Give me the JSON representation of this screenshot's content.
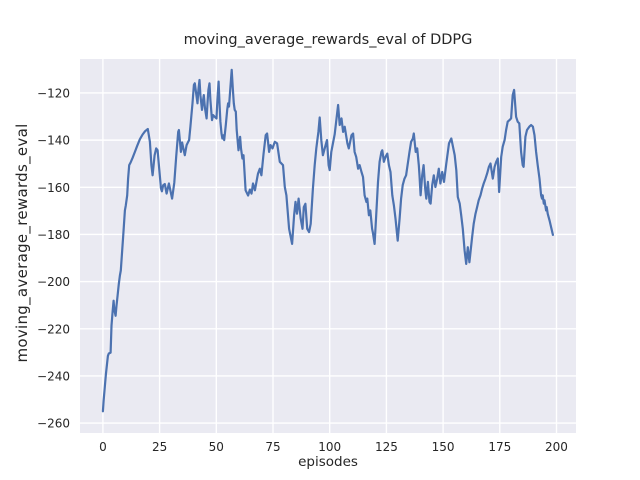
{
  "figure": {
    "title": "moving_average_rewards_eval of DDPG"
  },
  "chart_data": {
    "type": "line",
    "title": "moving_average_rewards_eval of DDPG",
    "xlabel": "episodes",
    "ylabel": "moving_average_rewards_eval",
    "legend": null,
    "grid": true,
    "xlim": [
      -10.1,
      208.6
    ],
    "ylim": [
      -264.2,
      -105.6
    ],
    "xticks": [
      0,
      25,
      50,
      75,
      100,
      125,
      150,
      175,
      200
    ],
    "yticks": [
      -120,
      -140,
      -160,
      -180,
      -200,
      -220,
      -240,
      -260
    ],
    "colors": {
      "line": "#4c72b0",
      "plot_background": "#eaeaf2",
      "grid": "#ffffff",
      "text": "#262626",
      "figure_background": "#ffffff"
    },
    "series": [
      {
        "name": "moving_average_rewards_eval",
        "points": [
          [
            0,
            -255
          ],
          [
            0.3,
            -250.6
          ],
          [
            0.9,
            -244.2
          ],
          [
            1.3,
            -239.3
          ],
          [
            1.8,
            -235
          ],
          [
            2.2,
            -231.5
          ],
          [
            2.6,
            -230.5
          ],
          [
            3.4,
            -230.1
          ],
          [
            3.8,
            -218.7
          ],
          [
            4.3,
            -212.3
          ],
          [
            4.7,
            -208.1
          ],
          [
            5,
            -211.6
          ],
          [
            5.6,
            -214.5
          ],
          [
            6,
            -210.2
          ],
          [
            6.5,
            -205.9
          ],
          [
            7,
            -201
          ],
          [
            7.5,
            -197.4
          ],
          [
            7.9,
            -195.3
          ],
          [
            9,
            -180
          ],
          [
            9.7,
            -169.8
          ],
          [
            10.1,
            -167.7
          ],
          [
            10.7,
            -163.4
          ],
          [
            11.1,
            -156.3
          ],
          [
            11.6,
            -150.6
          ],
          [
            12.2,
            -149.5
          ],
          [
            13.1,
            -147.5
          ],
          [
            14.1,
            -145
          ],
          [
            15.1,
            -142.4
          ],
          [
            16.3,
            -139.6
          ],
          [
            17.5,
            -137.6
          ],
          [
            18.6,
            -136.2
          ],
          [
            19.8,
            -135.3
          ],
          [
            20.7,
            -140.7
          ],
          [
            21.4,
            -150.6
          ],
          [
            21.9,
            -154.9
          ],
          [
            22.8,
            -146.4
          ],
          [
            23.5,
            -143.5
          ],
          [
            24.1,
            -144.3
          ],
          [
            24.8,
            -152.1
          ],
          [
            25.6,
            -160.6
          ],
          [
            26,
            -161.7
          ],
          [
            26.6,
            -159.1
          ],
          [
            27.3,
            -158.6
          ],
          [
            28.1,
            -162.7
          ],
          [
            29.1,
            -158.4
          ],
          [
            30.5,
            -164.8
          ],
          [
            31.5,
            -158
          ],
          [
            32.3,
            -147
          ],
          [
            33.2,
            -136.5
          ],
          [
            33.5,
            -135.7
          ],
          [
            34.4,
            -145
          ],
          [
            34.9,
            -141
          ],
          [
            36.1,
            -146.4
          ],
          [
            36.9,
            -142.1
          ],
          [
            37.6,
            -140.7
          ],
          [
            38,
            -140
          ],
          [
            38.6,
            -134.3
          ],
          [
            39.1,
            -128.6
          ],
          [
            39.5,
            -124.4
          ],
          [
            40.1,
            -116.6
          ],
          [
            40.5,
            -115.9
          ],
          [
            41,
            -119.4
          ],
          [
            41.7,
            -124.4
          ],
          [
            42.1,
            -118.7
          ],
          [
            42.6,
            -114.5
          ],
          [
            43,
            -120.9
          ],
          [
            43.7,
            -127.2
          ],
          [
            44.2,
            -123
          ],
          [
            44.5,
            -120.9
          ],
          [
            45,
            -126.5
          ],
          [
            45.7,
            -130.8
          ],
          [
            46.1,
            -124.4
          ],
          [
            46.5,
            -118.7
          ],
          [
            47,
            -115.9
          ],
          [
            47.4,
            -123
          ],
          [
            48.1,
            -131.5
          ],
          [
            48.6,
            -129.4
          ],
          [
            49.3,
            -130.1
          ],
          [
            50.1,
            -130.8
          ],
          [
            50.5,
            -123
          ],
          [
            51,
            -115.2
          ],
          [
            51.4,
            -124.4
          ],
          [
            51.8,
            -132.2
          ],
          [
            52.3,
            -137.2
          ],
          [
            52.7,
            -139.3
          ],
          [
            53.2,
            -137.9
          ],
          [
            53.5,
            -140
          ],
          [
            54.2,
            -133.6
          ],
          [
            54.8,
            -127.2
          ],
          [
            55.2,
            -124.4
          ],
          [
            55.6,
            -125.8
          ],
          [
            56.1,
            -119.4
          ],
          [
            56.8,
            -110.2
          ],
          [
            57.3,
            -118.7
          ],
          [
            57.7,
            -124.4
          ],
          [
            58.1,
            -127.2
          ],
          [
            58.6,
            -127.9
          ],
          [
            59,
            -135.7
          ],
          [
            59.8,
            -144.3
          ],
          [
            60.5,
            -138.6
          ],
          [
            60.9,
            -143.5
          ],
          [
            61.5,
            -147.8
          ],
          [
            62,
            -146.4
          ],
          [
            62.4,
            -152.7
          ],
          [
            62.9,
            -161.3
          ],
          [
            64,
            -163.5
          ],
          [
            64.8,
            -161
          ],
          [
            65.5,
            -162.7
          ],
          [
            66.2,
            -158.4
          ],
          [
            67,
            -161.3
          ],
          [
            68.4,
            -154.2
          ],
          [
            69.2,
            -152.1
          ],
          [
            69.9,
            -154.9
          ],
          [
            70.8,
            -146
          ],
          [
            71.8,
            -137.9
          ],
          [
            72.4,
            -137.2
          ],
          [
            73.3,
            -145
          ],
          [
            73.9,
            -142.1
          ],
          [
            74.8,
            -143.5
          ],
          [
            75.8,
            -140.7
          ],
          [
            76.8,
            -141.4
          ],
          [
            78,
            -149.2
          ],
          [
            79.4,
            -150.6
          ],
          [
            80.2,
            -159.9
          ],
          [
            80.9,
            -163.4
          ],
          [
            82.1,
            -177.6
          ],
          [
            83.4,
            -184
          ],
          [
            84.3,
            -171.9
          ],
          [
            84.9,
            -166.2
          ],
          [
            85.6,
            -171.2
          ],
          [
            86.3,
            -164.8
          ],
          [
            87.2,
            -173.3
          ],
          [
            88,
            -177.6
          ],
          [
            88.6,
            -168.4
          ],
          [
            89.3,
            -167
          ],
          [
            90.1,
            -177.6
          ],
          [
            90.9,
            -179
          ],
          [
            91.6,
            -175.5
          ],
          [
            92.6,
            -160.6
          ],
          [
            93.4,
            -150.6
          ],
          [
            94.1,
            -143.5
          ],
          [
            95,
            -136.5
          ],
          [
            95.6,
            -130.4
          ],
          [
            96.3,
            -140
          ],
          [
            97,
            -146.4
          ],
          [
            98.2,
            -142.1
          ],
          [
            98.8,
            -140
          ],
          [
            99.5,
            -150.6
          ],
          [
            100,
            -152.7
          ],
          [
            100.7,
            -145
          ],
          [
            101.5,
            -141
          ],
          [
            102.2,
            -137.5
          ],
          [
            103.7,
            -125.1
          ],
          [
            104.4,
            -133.6
          ],
          [
            105.2,
            -130.8
          ],
          [
            105.9,
            -136.5
          ],
          [
            106.6,
            -134.3
          ],
          [
            107.8,
            -141.4
          ],
          [
            108.4,
            -143.5
          ],
          [
            109.6,
            -137.9
          ],
          [
            110.3,
            -137.2
          ],
          [
            111,
            -145
          ],
          [
            111.7,
            -147.1
          ],
          [
            112.5,
            -152.1
          ],
          [
            113.2,
            -150.6
          ],
          [
            114,
            -153.5
          ],
          [
            114.7,
            -155.6
          ],
          [
            115.4,
            -163.4
          ],
          [
            116.2,
            -166.2
          ],
          [
            116.6,
            -164.8
          ],
          [
            117.3,
            -171.9
          ],
          [
            117.9,
            -169.8
          ],
          [
            118.7,
            -177.6
          ],
          [
            119,
            -179
          ],
          [
            119.8,
            -184
          ],
          [
            120.5,
            -171.9
          ],
          [
            121.3,
            -157.7
          ],
          [
            122,
            -149.2
          ],
          [
            122.8,
            -145
          ],
          [
            123.2,
            -144.3
          ],
          [
            123.9,
            -149.2
          ],
          [
            124.6,
            -147.1
          ],
          [
            125.4,
            -145.7
          ],
          [
            126.1,
            -150.6
          ],
          [
            126.8,
            -153.5
          ],
          [
            127.6,
            -163.4
          ],
          [
            128.3,
            -167.7
          ],
          [
            129,
            -173.3
          ],
          [
            130,
            -182.6
          ],
          [
            130.8,
            -173.3
          ],
          [
            131.5,
            -164.8
          ],
          [
            132.2,
            -159.1
          ],
          [
            133,
            -156.3
          ],
          [
            133.7,
            -154.9
          ],
          [
            135.2,
            -145
          ],
          [
            135.9,
            -140.7
          ],
          [
            136.7,
            -139.3
          ],
          [
            137.1,
            -137.2
          ],
          [
            137.9,
            -145
          ],
          [
            138.6,
            -143.5
          ],
          [
            139.3,
            -150.6
          ],
          [
            139.6,
            -155
          ],
          [
            140.1,
            -163.4
          ],
          [
            140.8,
            -154.9
          ],
          [
            141.4,
            -150.6
          ],
          [
            142.1,
            -160.6
          ],
          [
            142.6,
            -164.8
          ],
          [
            143.3,
            -157.7
          ],
          [
            144,
            -166.2
          ],
          [
            144.5,
            -166.9
          ],
          [
            145.2,
            -159.1
          ],
          [
            145.9,
            -154.9
          ],
          [
            146.6,
            -159.9
          ],
          [
            147.4,
            -156.3
          ],
          [
            148.1,
            -152.1
          ],
          [
            148.8,
            -158.4
          ],
          [
            149.6,
            -153.5
          ],
          [
            150.4,
            -157.7
          ],
          [
            151.4,
            -149.9
          ],
          [
            152.6,
            -141.4
          ],
          [
            153.6,
            -139.3
          ],
          [
            155.1,
            -146.4
          ],
          [
            155.8,
            -152.7
          ],
          [
            156.5,
            -164.1
          ],
          [
            157.3,
            -166.9
          ],
          [
            158,
            -171.9
          ],
          [
            158.7,
            -177.6
          ],
          [
            159.5,
            -186.8
          ],
          [
            160.2,
            -192.5
          ],
          [
            160.9,
            -185.4
          ],
          [
            161.6,
            -191.8
          ],
          [
            162.8,
            -181.2
          ],
          [
            163.5,
            -175.5
          ],
          [
            164.3,
            -171.2
          ],
          [
            165,
            -168.4
          ],
          [
            165.7,
            -165.5
          ],
          [
            166.5,
            -163.4
          ],
          [
            167.2,
            -160.6
          ],
          [
            167.9,
            -158.4
          ],
          [
            168.7,
            -156.3
          ],
          [
            169.4,
            -154.2
          ],
          [
            170.2,
            -151.3
          ],
          [
            170.9,
            -149.9
          ],
          [
            171.9,
            -156.3
          ],
          [
            172.7,
            -151.3
          ],
          [
            173.4,
            -149.2
          ],
          [
            174.1,
            -147.8
          ],
          [
            174.7,
            -162
          ],
          [
            175.6,
            -147.1
          ],
          [
            176.3,
            -142.8
          ],
          [
            177.1,
            -140
          ],
          [
            177.8,
            -135.7
          ],
          [
            178.5,
            -132.2
          ],
          [
            179.3,
            -131.5
          ],
          [
            180,
            -130.8
          ],
          [
            180.7,
            -120.9
          ],
          [
            181.3,
            -118.7
          ],
          [
            182.2,
            -130.1
          ],
          [
            182.9,
            -132.2
          ],
          [
            183.6,
            -132.9
          ],
          [
            184.4,
            -145
          ],
          [
            185.1,
            -150.6
          ],
          [
            185.5,
            -151.3
          ],
          [
            186.3,
            -138.6
          ],
          [
            187,
            -135.7
          ],
          [
            188,
            -134.3
          ],
          [
            188.8,
            -133.6
          ],
          [
            189.6,
            -134.3
          ],
          [
            190.3,
            -137.9
          ],
          [
            191,
            -145
          ],
          [
            191.7,
            -150.6
          ],
          [
            192.5,
            -156.3
          ],
          [
            193.2,
            -163.4
          ],
          [
            193.6,
            -164.8
          ],
          [
            193.9,
            -163.4
          ],
          [
            194.4,
            -166.9
          ],
          [
            194.7,
            -165.5
          ],
          [
            195.4,
            -169.8
          ],
          [
            195.7,
            -168.4
          ],
          [
            196.1,
            -171.2
          ],
          [
            196.9,
            -174
          ],
          [
            197.6,
            -176.9
          ],
          [
            198.4,
            -180.2
          ]
        ]
      }
    ]
  }
}
